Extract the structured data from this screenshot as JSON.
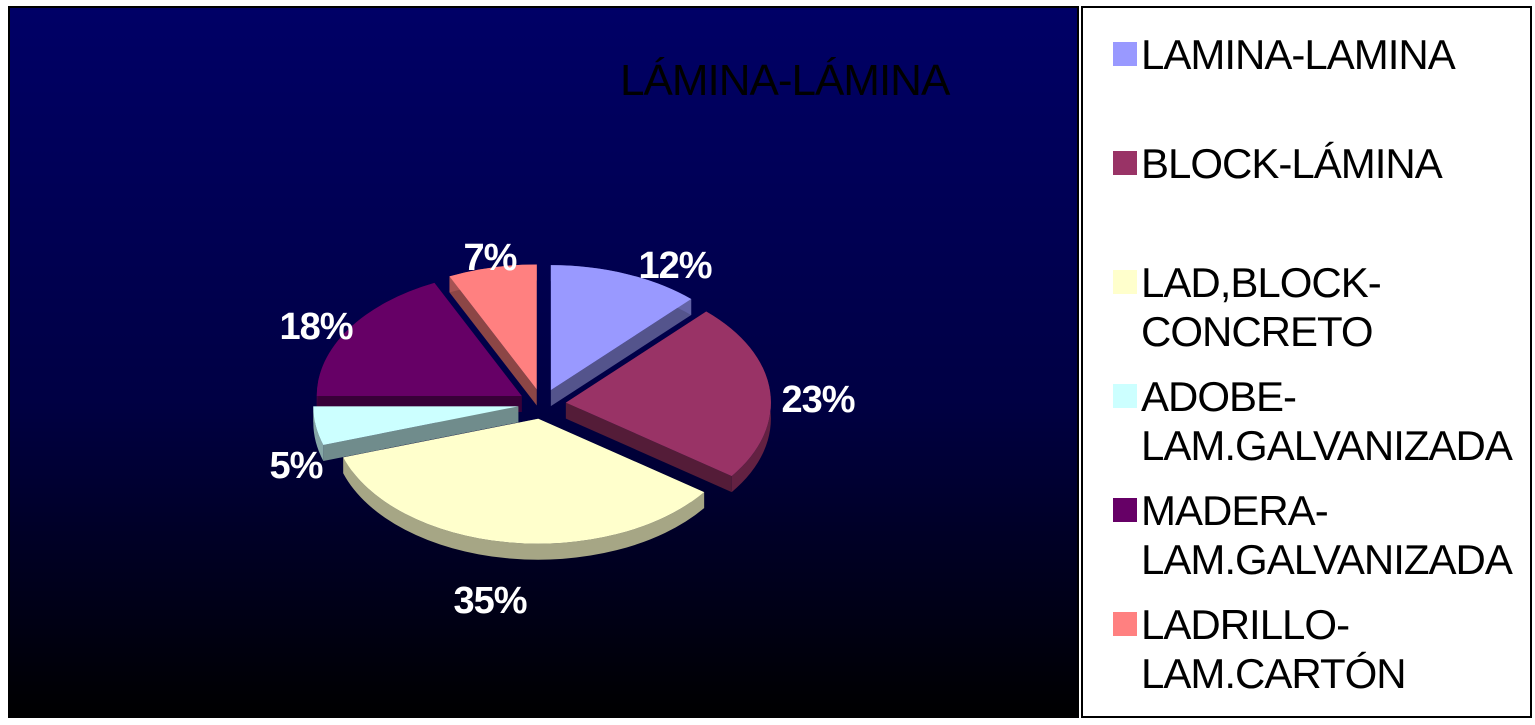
{
  "chart_data": {
    "type": "pie",
    "title": "LÁMINA-LÁMINA",
    "slices": [
      {
        "label": "LAMINA-LAMINA",
        "value": 12,
        "value_label": "12%",
        "color": "#9999FF"
      },
      {
        "label": "BLOCK-LÁMINA",
        "value": 23,
        "value_label": "23%",
        "color": "#993366"
      },
      {
        "label": "LAD,BLOCK-CONCRETO",
        "value": 35,
        "value_label": "35%",
        "color": "#FFFFCC"
      },
      {
        "label": "ADOBE-LAM.GALVANIZADA",
        "value": 5,
        "value_label": "5%",
        "color": "#CCFFFF"
      },
      {
        "label": "MADERA-LAM.GALVANIZADA",
        "value": 18,
        "value_label": "18%",
        "color": "#660066"
      },
      {
        "label": "LADRILLO-LAM.CARTÓN",
        "value": 7,
        "value_label": "7%",
        "color": "#FF8080"
      }
    ],
    "legend_position": "right",
    "style": "3d-exploded"
  },
  "legend": {
    "items": [
      {
        "line1": "LAMINA-LAMINA",
        "line2": ""
      },
      {
        "line1": "BLOCK-LÁMINA",
        "line2": ""
      },
      {
        "line1": "LAD,BLOCK-",
        "line2": "CONCRETO"
      },
      {
        "line1": "ADOBE-",
        "line2": "LAM.GALVANIZADA"
      },
      {
        "line1": "MADERA-",
        "line2": "LAM.GALVANIZADA"
      },
      {
        "line1": "LADRILLO-",
        "line2": "LAM.CARTÓN"
      }
    ]
  }
}
